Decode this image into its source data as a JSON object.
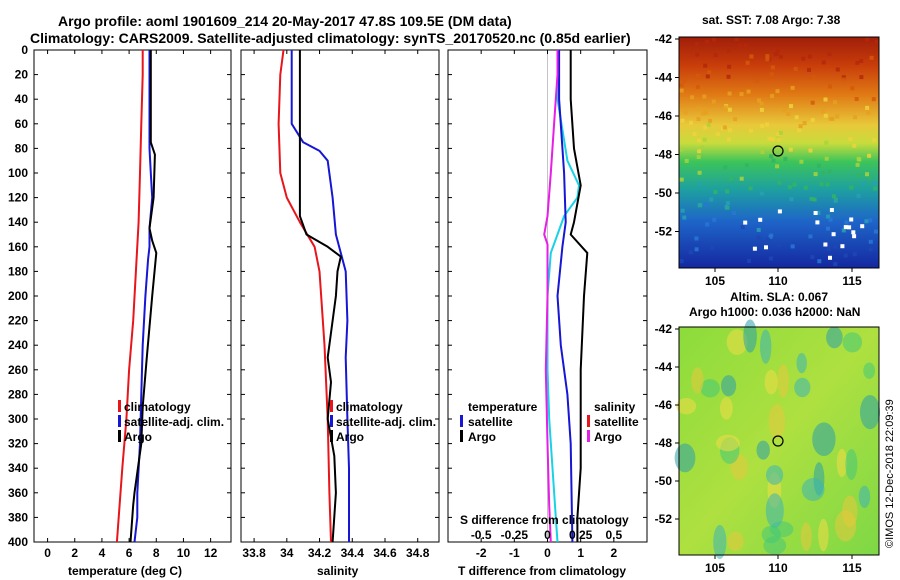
{
  "title": {
    "line1": "Argo profile: aoml 1901609_214 20-May-2017 47.8S 109.5E (DM data)",
    "line2": "Climatology: CARS2009. Satellite-adjusted climatology: synTS_20170520.nc (0.85d earlier)"
  },
  "depth_ticks": [
    0,
    20,
    40,
    60,
    80,
    100,
    120,
    140,
    160,
    180,
    200,
    220,
    240,
    260,
    280,
    300,
    320,
    340,
    360,
    380,
    400
  ],
  "colors": {
    "climatology": "#e8151b",
    "satellite": "#1616d4",
    "argo": "#000000",
    "temp_diff": "#18d2e6",
    "sal_diff": "#e61ee6"
  },
  "chart_data": [
    {
      "type": "line",
      "name": "temperature",
      "xlabel": "temperature (deg C)",
      "xlim": [
        -1,
        13.5
      ],
      "xticks": [
        "0",
        "2",
        "4",
        "6",
        "8",
        "10",
        "12"
      ],
      "ylim": [
        400,
        0
      ],
      "legend": [
        "climatology",
        "satellite-adj. clim.",
        "Argo"
      ],
      "series": [
        {
          "name": "climatology",
          "color": "#e8151b",
          "points": [
            [
              7.0,
              0
            ],
            [
              7.0,
              20
            ],
            [
              6.9,
              60
            ],
            [
              6.8,
              100
            ],
            [
              6.7,
              140
            ],
            [
              6.5,
              180
            ],
            [
              6.3,
              220
            ],
            [
              6.0,
              260
            ],
            [
              5.8,
              300
            ],
            [
              5.5,
              340
            ],
            [
              5.3,
              370
            ],
            [
              5.1,
              400
            ]
          ]
        },
        {
          "name": "satellite-adj. clim.",
          "color": "#1616d4",
          "points": [
            [
              7.5,
              0
            ],
            [
              7.5,
              40
            ],
            [
              7.5,
              80
            ],
            [
              7.6,
              100
            ],
            [
              7.7,
              120
            ],
            [
              7.5,
              145
            ],
            [
              7.5,
              160
            ],
            [
              7.4,
              170
            ],
            [
              7.2,
              200
            ],
            [
              7.0,
              240
            ],
            [
              6.9,
              280
            ],
            [
              6.8,
              320
            ],
            [
              6.6,
              360
            ],
            [
              6.6,
              380
            ],
            [
              6.4,
              400
            ]
          ]
        },
        {
          "name": "Argo",
          "color": "#000000",
          "points": [
            [
              7.6,
              0
            ],
            [
              7.6,
              30
            ],
            [
              7.6,
              60
            ],
            [
              7.6,
              75
            ],
            [
              7.9,
              85
            ],
            [
              7.8,
              120
            ],
            [
              7.5,
              145
            ],
            [
              7.7,
              155
            ],
            [
              8.0,
              165
            ],
            [
              7.7,
              200
            ],
            [
              7.3,
              250
            ],
            [
              7.0,
              290
            ],
            [
              6.9,
              320
            ],
            [
              6.4,
              360
            ],
            [
              6.3,
              370
            ],
            [
              6.1,
              400
            ]
          ]
        }
      ]
    },
    {
      "type": "line",
      "name": "salinity",
      "xlabel": "salinity",
      "xlim": [
        33.72,
        34.93
      ],
      "xticks": [
        "33.8",
        "34",
        "34.2",
        "34.4",
        "34.6",
        "34.8"
      ],
      "ylim": [
        400,
        0
      ],
      "legend": [
        "climatology",
        "satellite-adj. clim.",
        "Argo"
      ],
      "series": [
        {
          "name": "climatology",
          "color": "#e8151b",
          "points": [
            [
              33.98,
              0
            ],
            [
              33.96,
              20
            ],
            [
              33.95,
              60
            ],
            [
              33.96,
              100
            ],
            [
              34.0,
              120
            ],
            [
              34.08,
              140
            ],
            [
              34.17,
              160
            ],
            [
              34.2,
              180
            ],
            [
              34.23,
              240
            ],
            [
              34.25,
              300
            ],
            [
              34.26,
              360
            ],
            [
              34.27,
              400
            ]
          ]
        },
        {
          "name": "satellite-adj. clim.",
          "color": "#1616d4",
          "points": [
            [
              34.03,
              0
            ],
            [
              34.03,
              20
            ],
            [
              34.03,
              60
            ],
            [
              34.1,
              75
            ],
            [
              34.2,
              82
            ],
            [
              34.25,
              90
            ],
            [
              34.28,
              120
            ],
            [
              34.3,
              150
            ],
            [
              34.36,
              180
            ],
            [
              34.37,
              220
            ],
            [
              34.36,
              250
            ],
            [
              34.37,
              300
            ],
            [
              34.38,
              340
            ],
            [
              34.38,
              400
            ]
          ]
        },
        {
          "name": "Argo",
          "color": "#000000",
          "points": [
            [
              34.08,
              0
            ],
            [
              34.08,
              135
            ],
            [
              34.12,
              150
            ],
            [
              34.25,
              160
            ],
            [
              34.33,
              168
            ],
            [
              34.31,
              180
            ],
            [
              34.3,
              200
            ],
            [
              34.25,
              250
            ],
            [
              34.27,
              270
            ],
            [
              34.25,
              300
            ],
            [
              34.29,
              330
            ],
            [
              34.3,
              360
            ],
            [
              34.28,
              400
            ]
          ]
        }
      ]
    },
    {
      "type": "line",
      "name": "differences",
      "xlabel": "T difference from climatology",
      "top_axis_label": "S difference from climatology",
      "xlim": [
        -3,
        3
      ],
      "xticks": [
        "-2",
        "-1",
        "0",
        "1",
        "2"
      ],
      "top_xticks": [
        "-0.5",
        "-0.25",
        "0",
        "0.25",
        "0.5"
      ],
      "ylim": [
        400,
        0
      ],
      "legend_left": {
        "title": "temperature",
        "items": [
          "satellite",
          "Argo"
        ]
      },
      "legend_right": {
        "title": "salinity",
        "items": [
          "satellite",
          "Argo"
        ]
      },
      "series": [
        {
          "name": "T satellite",
          "color": "#18d2e6",
          "points": [
            [
              0.3,
              0
            ],
            [
              0.3,
              40
            ],
            [
              0.6,
              90
            ],
            [
              0.95,
              110
            ],
            [
              0.9,
              120
            ],
            [
              0.5,
              135
            ],
            [
              0.3,
              150
            ],
            [
              0.1,
              165
            ],
            [
              0.0,
              200
            ],
            [
              0.0,
              260
            ],
            [
              0.05,
              300
            ],
            [
              0.15,
              340
            ],
            [
              0.25,
              380
            ],
            [
              0.3,
              400
            ]
          ]
        },
        {
          "name": "T Argo",
          "color": "#000000",
          "points": [
            [
              0.7,
              0
            ],
            [
              0.7,
              40
            ],
            [
              0.8,
              80
            ],
            [
              1.0,
              110
            ],
            [
              0.8,
              140
            ],
            [
              0.7,
              150
            ],
            [
              1.2,
              165
            ],
            [
              1.1,
              200
            ],
            [
              1.0,
              260
            ],
            [
              1.0,
              300
            ],
            [
              1.0,
              340
            ],
            [
              0.9,
              380
            ],
            [
              0.9,
              400
            ]
          ]
        },
        {
          "name": "S satellite",
          "color": "#1616d4",
          "points": [
            [
              0.35,
              0
            ],
            [
              0.35,
              40
            ],
            [
              0.5,
              100
            ],
            [
              0.55,
              140
            ],
            [
              0.45,
              160
            ],
            [
              0.3,
              200
            ],
            [
              0.4,
              240
            ],
            [
              0.6,
              280
            ],
            [
              0.7,
              320
            ],
            [
              0.75,
              400
            ]
          ]
        },
        {
          "name": "S Argo",
          "color": "#e61ee6",
          "points": [
            [
              0.3,
              0
            ],
            [
              0.3,
              20
            ],
            [
              0.2,
              60
            ],
            [
              0.1,
              100
            ],
            [
              0.0,
              135
            ],
            [
              -0.1,
              150
            ],
            [
              0.0,
              158
            ],
            [
              0.0,
              200
            ],
            [
              -0.05,
              260
            ],
            [
              0.0,
              320
            ],
            [
              0.05,
              370
            ],
            [
              0.1,
              400
            ]
          ]
        }
      ]
    }
  ],
  "maps": {
    "sst": {
      "title": "sat. SST: 7.08 Argo: 7.38",
      "lat_ticks": [
        "-42",
        "-44",
        "-46",
        "-48",
        "-50",
        "-52"
      ],
      "lon_ticks": [
        "105",
        "110",
        "115"
      ]
    },
    "sla": {
      "title1": "Altim. SLA: 0.067",
      "title2": "Argo h1000: 0.036 h2000: NaN",
      "lat_ticks": [
        "-42",
        "-44",
        "-46",
        "-48",
        "-50",
        "-52"
      ],
      "lon_ticks": [
        "105",
        "110",
        "115"
      ]
    }
  },
  "credit": "©IMOS 12-Dec-2018 22:09:39"
}
